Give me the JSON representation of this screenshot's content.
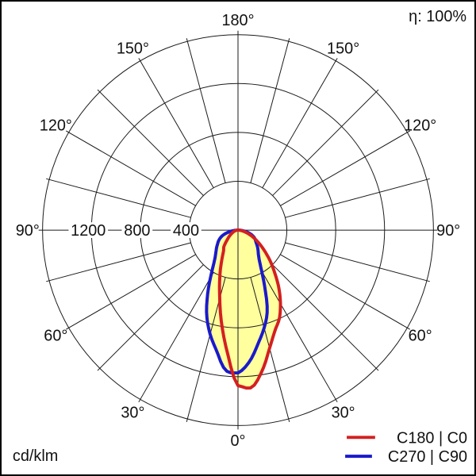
{
  "header": {
    "efficiency_label": "η: 100%"
  },
  "footer": {
    "unit_label": "cd/klm"
  },
  "legend": {
    "items": [
      {
        "label": "C180 | C0",
        "color": "#d32020"
      },
      {
        "label": "C270 | C90",
        "color": "#1a1acb"
      }
    ]
  },
  "chart_data": {
    "type": "polar",
    "subtype": "photometric_intensity_distribution",
    "unit": "cd/klm",
    "efficiency": "η: 100%",
    "radial_axis": {
      "rings": [
        400,
        800,
        1200,
        1600
      ],
      "ring_labels": [
        "400",
        "800",
        "1200"
      ],
      "max": 1600
    },
    "angle_axis": {
      "labels": [
        "0°",
        "30°",
        "60°",
        "90°",
        "120°",
        "150°",
        "180°"
      ],
      "label_step_deg": 30,
      "spoke_step_deg": 15
    },
    "gamma_step_deg": 5,
    "gamma_range_deg": [
      0,
      90
    ],
    "fill_color": "#ffff9e",
    "series": [
      {
        "name": "C180 | C0",
        "color": "#d32020",
        "left_plane": "C180",
        "right_plane": "C0",
        "left": [
          1273,
          1005,
          775,
          578,
          440,
          336,
          258,
          206,
          181,
          141,
          108,
          85,
          66,
          50,
          38,
          26,
          17,
          10,
          5
        ],
        "right": [
          1273,
          1292,
          1160,
          1000,
          880,
          800,
          695,
          585,
          475,
          385,
          305,
          238,
          182,
          136,
          96,
          62,
          36,
          18,
          8
        ]
      },
      {
        "name": "C270 | C90",
        "color": "#1a1acb",
        "left_plane": "C270",
        "right_plane": "C90",
        "left": [
          1169,
          1152,
          1005,
          882,
          748,
          592,
          452,
          352,
          292,
          256,
          230,
          206,
          186,
          164,
          138,
          104,
          64,
          30,
          9
        ],
        "right": [
          1169,
          1080,
          945,
          828,
          700,
          520,
          388,
          306,
          260,
          232,
          207,
          182,
          165,
          148,
          124,
          94,
          58,
          28,
          9
        ]
      }
    ]
  }
}
